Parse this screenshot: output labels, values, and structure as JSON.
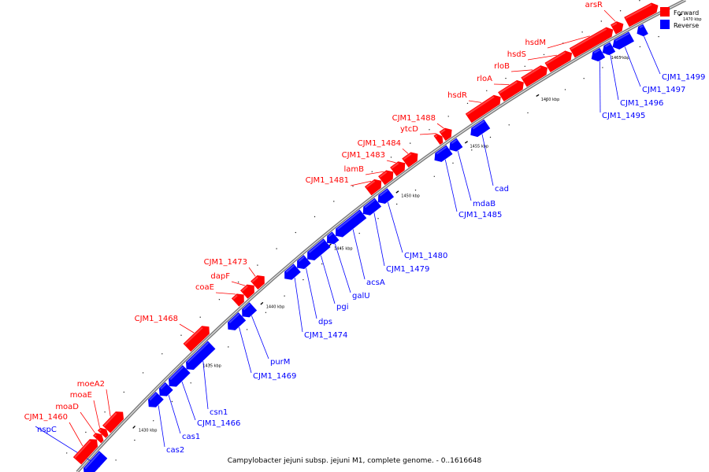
{
  "caption": "Campylobacter jejuni subsp. jejuni M1, complete genome. - 0..1616648",
  "legend": {
    "forward": "Forward",
    "reverse": "Reverse",
    "forward_color": "#ff0000",
    "reverse_color": "#0000ff"
  },
  "scale": {
    "ticks": [
      "1430 kbp",
      "1435 kbp",
      "1440 kbp",
      "1445 kbp",
      "1450 kbp",
      "1455 kbp",
      "1460 kbp",
      "1465 kbp",
      "1470 kbp"
    ]
  },
  "forward_genes": [
    "CJM1_1460",
    "moaD",
    "moaE",
    "moeA2",
    "CJM1_1468",
    "coaE",
    "dapF",
    "CJM1_1473",
    "CJM1_1481",
    "lamB",
    "CJM1_1483",
    "CJM1_1484",
    "ytcD",
    "CJM1_1488",
    "hsdR",
    "rloA",
    "rloB",
    "hsdS",
    "hsdM",
    "arsR"
  ],
  "reverse_genes": [
    "nspC",
    "cas2",
    "cas1",
    "CJM1_1466",
    "csn1",
    "CJM1_1469",
    "purM",
    "CJM1_1474",
    "dps",
    "pgi",
    "galU",
    "acsA",
    "CJM1_1479",
    "CJM1_1480",
    "CJM1_1485",
    "mdaB",
    "cad",
    "CJM1_1495",
    "CJM1_1496",
    "CJM1_1497",
    "CJM1_1499"
  ]
}
